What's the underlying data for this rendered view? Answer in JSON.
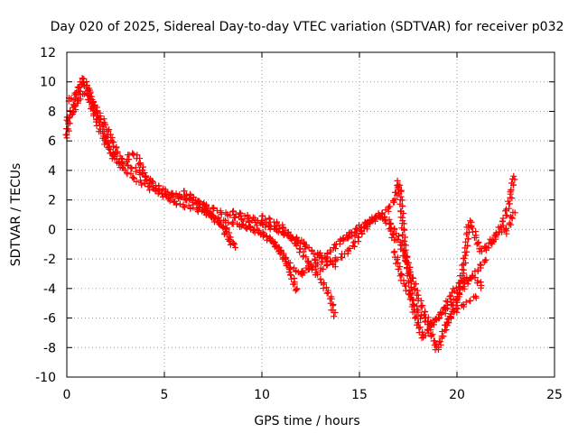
{
  "chart_data": {
    "type": "scatter",
    "title": "Day 020 of 2025, Sidereal Day-to-day VTEC variation (SDTVAR) for receiver p032",
    "xlabel": "GPS time / hours",
    "ylabel": "SDTVAR / TECUs",
    "xlim": [
      0,
      25
    ],
    "ylim": [
      -10,
      12
    ],
    "x_ticks": [
      "0",
      "5",
      "10",
      "15",
      "20",
      "25"
    ],
    "y_ticks": [
      "-10",
      "-8",
      "-6",
      "-4",
      "-2",
      "0",
      "2",
      "4",
      "6",
      "8",
      "10",
      "12"
    ],
    "grid": true,
    "marker": "+",
    "series": [
      {
        "name": "SDTVAR",
        "color": "#ff0000",
        "segments": [
          [
            [
              0.0,
              6.2
            ],
            [
              0.1,
              7.5
            ],
            [
              0.3,
              8.4
            ],
            [
              0.5,
              9.0
            ],
            [
              0.7,
              9.6
            ],
            [
              0.8,
              10.3
            ],
            [
              1.0,
              9.8
            ],
            [
              1.2,
              9.0
            ],
            [
              1.5,
              8.0
            ],
            [
              1.8,
              7.0
            ],
            [
              2.0,
              6.2
            ],
            [
              2.2,
              5.4
            ],
            [
              2.5,
              4.6
            ],
            [
              2.8,
              4.3
            ],
            [
              3.0,
              4.6
            ],
            [
              3.3,
              5.2
            ],
            [
              3.6,
              5.0
            ],
            [
              3.8,
              4.3
            ],
            [
              4.0,
              3.6
            ],
            [
              4.3,
              3.0
            ],
            [
              4.6,
              2.7
            ],
            [
              5.0,
              2.4
            ],
            [
              5.5,
              2.2
            ],
            [
              6.0,
              2.1
            ],
            [
              6.5,
              2.0
            ],
            [
              7.0,
              1.7
            ],
            [
              7.5,
              1.4
            ],
            [
              8.0,
              1.1
            ],
            [
              8.5,
              0.9
            ],
            [
              9.0,
              0.7
            ],
            [
              9.5,
              0.5
            ],
            [
              10.0,
              0.3
            ],
            [
              10.5,
              0.1
            ],
            [
              11.0,
              -0.2
            ],
            [
              11.5,
              -0.6
            ],
            [
              12.0,
              -1.0
            ],
            [
              12.5,
              -1.4
            ],
            [
              13.0,
              -1.8
            ],
            [
              13.5,
              -2.2
            ],
            [
              13.8,
              -2.5
            ]
          ],
          [
            [
              0.0,
              7.4
            ],
            [
              0.3,
              7.9
            ],
            [
              0.6,
              8.8
            ],
            [
              0.9,
              9.3
            ],
            [
              1.2,
              8.6
            ],
            [
              1.5,
              7.4
            ],
            [
              1.8,
              6.4
            ],
            [
              2.1,
              5.6
            ],
            [
              2.4,
              5.0
            ],
            [
              2.7,
              4.5
            ],
            [
              3.0,
              4.0
            ],
            [
              3.5,
              3.4
            ],
            [
              4.0,
              3.0
            ],
            [
              4.5,
              2.6
            ],
            [
              5.0,
              2.3
            ],
            [
              5.5,
              1.8
            ],
            [
              6.0,
              1.6
            ],
            [
              6.5,
              1.4
            ],
            [
              7.0,
              1.2
            ],
            [
              7.5,
              0.9
            ],
            [
              8.0,
              0.6
            ],
            [
              8.5,
              0.4
            ],
            [
              9.0,
              0.2
            ],
            [
              9.5,
              0.0
            ],
            [
              10.0,
              -0.3
            ],
            [
              10.5,
              -0.8
            ],
            [
              11.0,
              -1.5
            ],
            [
              11.5,
              -2.6
            ],
            [
              12.0,
              -3.0
            ],
            [
              12.5,
              -2.4
            ],
            [
              13.0,
              -1.6
            ]
          ],
          [
            [
              0.1,
              8.7
            ],
            [
              0.4,
              9.2
            ],
            [
              0.8,
              9.9
            ],
            [
              1.1,
              9.5
            ],
            [
              1.4,
              8.3
            ],
            [
              1.7,
              7.8
            ],
            [
              2.0,
              7.0
            ],
            [
              2.3,
              6.1
            ],
            [
              2.6,
              5.2
            ],
            [
              2.9,
              4.6
            ],
            [
              3.2,
              4.3
            ],
            [
              3.5,
              4.1
            ],
            [
              3.9,
              3.7
            ],
            [
              4.4,
              3.2
            ],
            [
              4.8,
              2.8
            ],
            [
              5.3,
              2.5
            ],
            [
              5.8,
              2.3
            ],
            [
              6.3,
              2.0
            ],
            [
              6.8,
              1.5
            ],
            [
              7.3,
              1.0
            ],
            [
              7.8,
              0.4
            ],
            [
              8.2,
              0.0
            ],
            [
              8.5,
              -1.0
            ]
          ],
          [
            [
              6.0,
              2.6
            ],
            [
              6.5,
              2.1
            ],
            [
              7.0,
              1.6
            ],
            [
              7.5,
              0.9
            ],
            [
              8.0,
              0.1
            ],
            [
              8.3,
              -0.7
            ],
            [
              8.6,
              -1.2
            ]
          ],
          [
            [
              8.5,
              1.2
            ],
            [
              9.0,
              1.0
            ],
            [
              9.5,
              0.8
            ],
            [
              10.0,
              0.5
            ],
            [
              10.5,
              0.2
            ],
            [
              11.0,
              -0.1
            ],
            [
              11.5,
              -0.4
            ],
            [
              12.0,
              -0.8
            ],
            [
              12.3,
              -1.0
            ]
          ],
          [
            [
              9.0,
              0.3
            ],
            [
              9.5,
              0.1
            ],
            [
              10.0,
              -0.2
            ],
            [
              10.5,
              -0.7
            ],
            [
              11.0,
              -1.6
            ],
            [
              11.5,
              -3.0
            ],
            [
              11.8,
              -4.2
            ]
          ],
          [
            [
              10.0,
              0.9
            ],
            [
              10.5,
              0.6
            ],
            [
              11.0,
              0.3
            ],
            [
              11.5,
              -0.5
            ],
            [
              12.0,
              -1.5
            ],
            [
              12.5,
              -2.4
            ],
            [
              13.0,
              -3.4
            ],
            [
              13.5,
              -4.5
            ],
            [
              13.7,
              -5.8
            ]
          ],
          [
            [
              12.0,
              -3.0
            ],
            [
              12.5,
              -2.6
            ],
            [
              13.0,
              -2.2
            ],
            [
              13.5,
              -1.5
            ],
            [
              14.0,
              -0.8
            ],
            [
              14.5,
              -0.3
            ],
            [
              15.0,
              0.2
            ],
            [
              15.5,
              0.6
            ],
            [
              16.0,
              0.9
            ],
            [
              16.5,
              0.4
            ],
            [
              16.8,
              -0.8
            ]
          ],
          [
            [
              13.0,
              -2.8
            ],
            [
              13.5,
              -2.2
            ],
            [
              14.0,
              -1.9
            ],
            [
              14.5,
              -1.4
            ],
            [
              15.0,
              -0.5
            ],
            [
              15.5,
              0.5
            ],
            [
              16.0,
              1.0
            ],
            [
              16.5,
              0.6
            ],
            [
              17.0,
              -0.6
            ],
            [
              17.5,
              -2.5
            ],
            [
              18.0,
              -4.5
            ],
            [
              18.5,
              -6.2
            ],
            [
              18.8,
              -7.6
            ],
            [
              19.0,
              -8.2
            ],
            [
              19.3,
              -7.0
            ],
            [
              19.6,
              -6.0
            ],
            [
              20.0,
              -5.4
            ],
            [
              20.5,
              -5.0
            ],
            [
              21.0,
              -4.5
            ]
          ],
          [
            [
              14.0,
              -0.8
            ],
            [
              14.5,
              -0.5
            ],
            [
              15.0,
              -0.1
            ],
            [
              15.5,
              0.4
            ],
            [
              16.0,
              0.9
            ],
            [
              16.5,
              1.4
            ],
            [
              16.8,
              2.0
            ],
            [
              17.0,
              3.2
            ],
            [
              17.1,
              2.5
            ],
            [
              17.3,
              -1.0
            ],
            [
              17.5,
              -2.8
            ],
            [
              17.7,
              -5.0
            ],
            [
              18.0,
              -6.5
            ],
            [
              18.3,
              -7.4
            ],
            [
              18.6,
              -6.6
            ],
            [
              19.0,
              -6.0
            ],
            [
              19.5,
              -5.4
            ],
            [
              20.0,
              -4.6
            ],
            [
              20.5,
              -3.6
            ],
            [
              21.0,
              -2.8
            ],
            [
              21.5,
              -2.0
            ]
          ],
          [
            [
              16.8,
              -1.5
            ],
            [
              17.2,
              -3.5
            ],
            [
              17.5,
              -4.2
            ],
            [
              17.8,
              -5.0
            ],
            [
              18.2,
              -6.0
            ],
            [
              18.6,
              -6.4
            ],
            [
              19.0,
              -6.0
            ],
            [
              19.4,
              -5.2
            ],
            [
              19.8,
              -4.2
            ],
            [
              20.2,
              -3.6
            ],
            [
              20.6,
              -3.2
            ],
            [
              21.0,
              -3.4
            ],
            [
              21.3,
              -3.9
            ]
          ],
          [
            [
              19.5,
              -6.5
            ],
            [
              20.0,
              -4.8
            ],
            [
              20.3,
              -2.8
            ],
            [
              20.5,
              -1.0
            ],
            [
              20.6,
              0.5
            ],
            [
              20.8,
              0.2
            ],
            [
              21.2,
              -1.5
            ],
            [
              21.6,
              -1.0
            ],
            [
              22.0,
              -0.4
            ],
            [
              22.3,
              0.0
            ],
            [
              22.5,
              -0.2
            ],
            [
              22.7,
              0.4
            ],
            [
              22.9,
              1.2
            ]
          ],
          [
            [
              21.5,
              -1.4
            ],
            [
              21.8,
              -0.9
            ],
            [
              22.1,
              -0.2
            ],
            [
              22.4,
              0.6
            ],
            [
              22.6,
              1.5
            ],
            [
              22.8,
              2.5
            ],
            [
              22.9,
              3.6
            ]
          ]
        ]
      }
    ]
  }
}
